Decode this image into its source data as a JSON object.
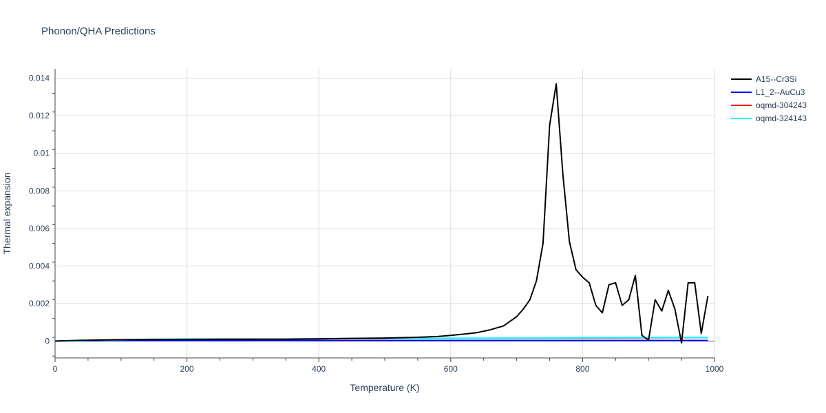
{
  "chart_data": {
    "type": "line",
    "title": "Phonon/QHA Predictions",
    "xlabel": "Temperature (K)",
    "ylabel": "Thermal expansion",
    "xlim": [
      0,
      1000
    ],
    "ylim": [
      -0.0009,
      0.0145
    ],
    "xticks": [
      0,
      200,
      400,
      600,
      800,
      1000
    ],
    "xtick_labels": [
      "0",
      "200",
      "400",
      "600",
      "800",
      "1000"
    ],
    "yticks": [
      0,
      0.002,
      0.004,
      0.006,
      0.008,
      0.01,
      0.012,
      0.014
    ],
    "ytick_labels": [
      "0",
      "0.002",
      "0.004",
      "0.006",
      "0.008",
      "0.01",
      "0.012",
      "0.014"
    ],
    "grid": true,
    "legend_position": "top-right",
    "series": [
      {
        "name": "A15--Cr3Si",
        "color": "#000000",
        "x": [
          0,
          20,
          40,
          60,
          80,
          100,
          150,
          200,
          250,
          300,
          350,
          400,
          450,
          500,
          550,
          580,
          600,
          620,
          640,
          660,
          680,
          690,
          700,
          710,
          720,
          730,
          740,
          750,
          760,
          770,
          780,
          790,
          800,
          810,
          820,
          830,
          840,
          850,
          860,
          870,
          880,
          890,
          900,
          910,
          920,
          930,
          940,
          950,
          960,
          970,
          980,
          990
        ],
        "y": [
          0,
          2e-05,
          4e-05,
          5e-05,
          6e-05,
          7e-05,
          8e-05,
          9e-05,
          0.0001,
          0.0001,
          0.0001,
          0.00012,
          0.00014,
          0.00016,
          0.0002,
          0.00024,
          0.0003,
          0.00037,
          0.00045,
          0.0006,
          0.0008,
          0.00105,
          0.0013,
          0.0017,
          0.0022,
          0.0032,
          0.0052,
          0.0115,
          0.0137,
          0.0089,
          0.0053,
          0.0038,
          0.0034,
          0.0031,
          0.0019,
          0.0015,
          0.003,
          0.0031,
          0.0019,
          0.0022,
          0.0035,
          0.0003,
          5e-05,
          0.0022,
          0.0016,
          0.0027,
          0.0017,
          -0.0001,
          0.0031,
          0.0031,
          0.0004,
          0.0024
        ]
      },
      {
        "name": "L1_2--AuCu3",
        "color": "#0000ff",
        "x": [
          0,
          50,
          100,
          200,
          300,
          400,
          500,
          600,
          700,
          800,
          900,
          990
        ],
        "y": [
          0,
          1e-05,
          2e-05,
          3e-05,
          3e-05,
          3e-05,
          3e-05,
          3e-05,
          3e-05,
          3e-05,
          3e-05,
          3e-05
        ]
      },
      {
        "name": "oqmd-304243",
        "color": "#ff0000",
        "x": [
          0,
          50,
          100,
          200,
          300,
          400,
          500,
          600,
          700,
          800,
          900,
          990
        ],
        "y": [
          0,
          3e-05,
          5e-05,
          8e-05,
          0.0001,
          0.00012,
          0.00013,
          0.00014,
          0.00015,
          0.00016,
          0.00017,
          0.00018
        ]
      },
      {
        "name": "oqmd-324143",
        "color": "#00ffff",
        "x": [
          0,
          30,
          60,
          100,
          150,
          200,
          250,
          300,
          350,
          400,
          450,
          500,
          600,
          700,
          800,
          900,
          990
        ],
        "y": [
          1e-05,
          0,
          4e-05,
          6e-05,
          0.0001,
          0.00011,
          0.00011,
          0.00011,
          0.00011,
          0.00013,
          0.00013,
          0.00014,
          0.00015,
          0.00016,
          0.00017,
          0.00018,
          0.00019
        ]
      }
    ]
  }
}
